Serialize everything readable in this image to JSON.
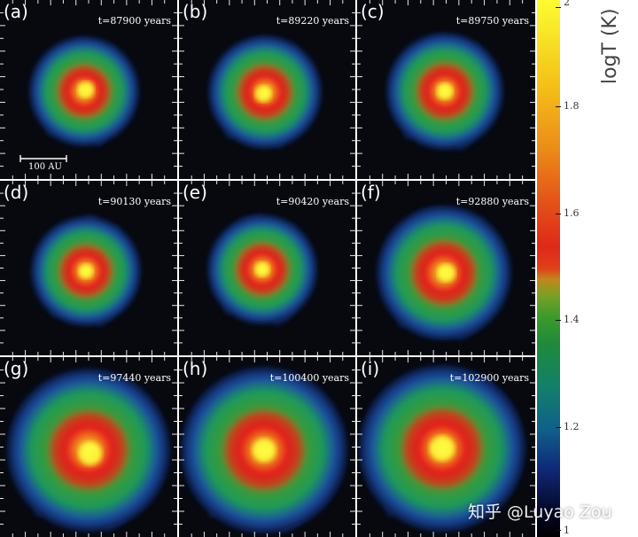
{
  "colors": {
    "background": "#07090f",
    "core": "#ffff40",
    "hot": "#e51a1a",
    "warm": "#f0a020",
    "mid": "#1f9a5a",
    "cool": "#1a4fa0",
    "cold": "#0b1642"
  },
  "panels": [
    {
      "label": "(a)",
      "time": "t=87900 years"
    },
    {
      "label": "(b)",
      "time": "t=89220 years"
    },
    {
      "label": "(c)",
      "time": "t=89750 years"
    },
    {
      "label": "(d)",
      "time": "t=90130 years"
    },
    {
      "label": "(e)",
      "time": "t=90420 years"
    },
    {
      "label": "(f)",
      "time": "t=92880 years"
    },
    {
      "label": "(g)",
      "time": "t=97440 years"
    },
    {
      "label": "(h)",
      "time": "t=100400 years"
    },
    {
      "label": "(i)",
      "time": "t=102900 years"
    }
  ],
  "scale_bar": {
    "label": "100 AU"
  },
  "colorbar": {
    "title": "logT (K)",
    "ticks": [
      "2",
      "1.8",
      "1.6",
      "1.4",
      "1.2",
      "1"
    ],
    "range": [
      1,
      2
    ]
  },
  "watermark": "知乎 @Luyao Zou"
}
